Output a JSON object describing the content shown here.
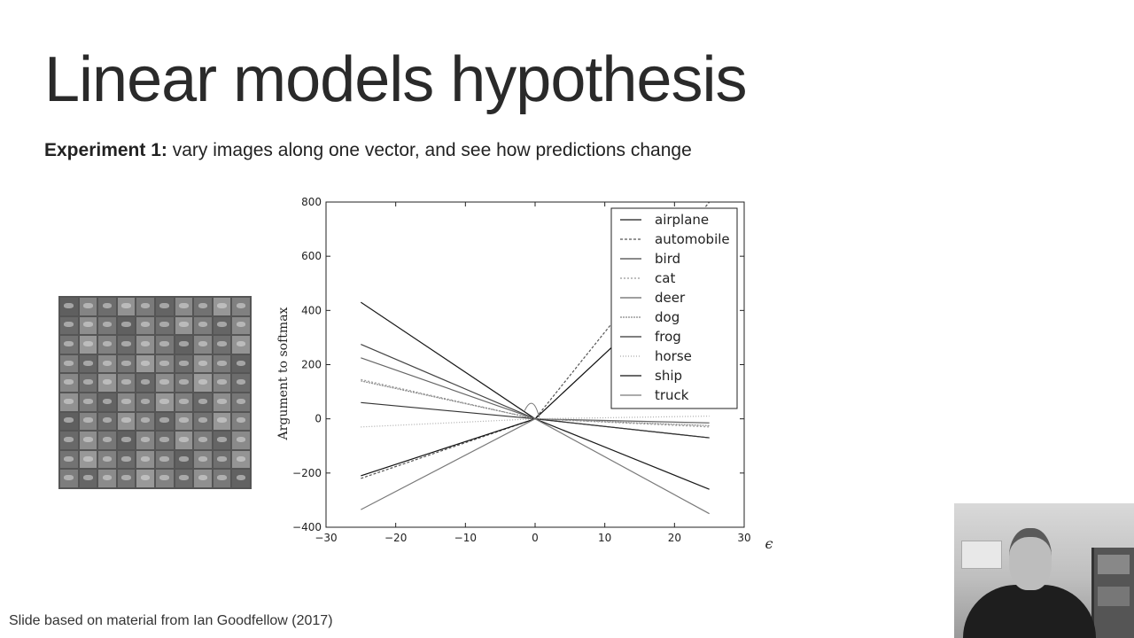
{
  "slide": {
    "title": "Linear models hypothesis",
    "subtitle_bold": "Experiment 1:",
    "subtitle_rest": " vary images along one vector, and see how predictions change",
    "footer": "Slide based on material from Ian Goodfellow (2017)"
  },
  "chart_data": {
    "type": "line",
    "xlabel": "ϵ",
    "ylabel": "Argument to softmax",
    "xlim": [
      -30,
      30
    ],
    "ylim": [
      -400,
      800
    ],
    "xticks": [
      -30,
      -20,
      -10,
      0,
      10,
      20,
      30
    ],
    "yticks": [
      -400,
      -200,
      0,
      200,
      400,
      600,
      800
    ],
    "xtick_labels": [
      "−30",
      "−20",
      "−10",
      "0",
      "10",
      "20",
      "30"
    ],
    "ytick_labels": [
      "−400",
      "−200",
      "0",
      "200",
      "400",
      "600",
      "800"
    ],
    "legend_position": "top-right",
    "series": [
      {
        "name": "airplane",
        "color": "#1a1a1a",
        "dash": "",
        "x": [
          -25,
          0,
          25
        ],
        "y": [
          430,
          0,
          -260
        ]
      },
      {
        "name": "automobile",
        "color": "#555555",
        "dash": "3,2",
        "x": [
          -25,
          0,
          25
        ],
        "y": [
          -220,
          0,
          800
        ]
      },
      {
        "name": "bird",
        "color": "#444444",
        "dash": "",
        "x": [
          -25,
          0,
          25
        ],
        "y": [
          275,
          0,
          -70
        ]
      },
      {
        "name": "cat",
        "color": "#999999",
        "dash": "2,2",
        "x": [
          -25,
          0,
          25
        ],
        "y": [
          145,
          0,
          -30
        ]
      },
      {
        "name": "deer",
        "color": "#666666",
        "dash": "",
        "x": [
          -25,
          0,
          25
        ],
        "y": [
          225,
          0,
          -15
        ]
      },
      {
        "name": "dog",
        "color": "#888888",
        "dash": "2,1",
        "x": [
          -25,
          0,
          25
        ],
        "y": [
          140,
          0,
          -25
        ]
      },
      {
        "name": "frog",
        "color": "#333333",
        "dash": "",
        "x": [
          -25,
          0,
          25
        ],
        "y": [
          60,
          0,
          -70
        ]
      },
      {
        "name": "horse",
        "color": "#aaaaaa",
        "dash": "1,2",
        "x": [
          -25,
          0,
          25
        ],
        "y": [
          -30,
          0,
          10
        ]
      },
      {
        "name": "ship",
        "color": "#111111",
        "dash": "",
        "x": [
          -25,
          0,
          25
        ],
        "y": [
          -210,
          0,
          600
        ]
      },
      {
        "name": "truck",
        "color": "#7a7a7a",
        "dash": "",
        "x": [
          -25,
          0,
          25
        ],
        "y": [
          -335,
          0,
          -350
        ]
      }
    ]
  }
}
